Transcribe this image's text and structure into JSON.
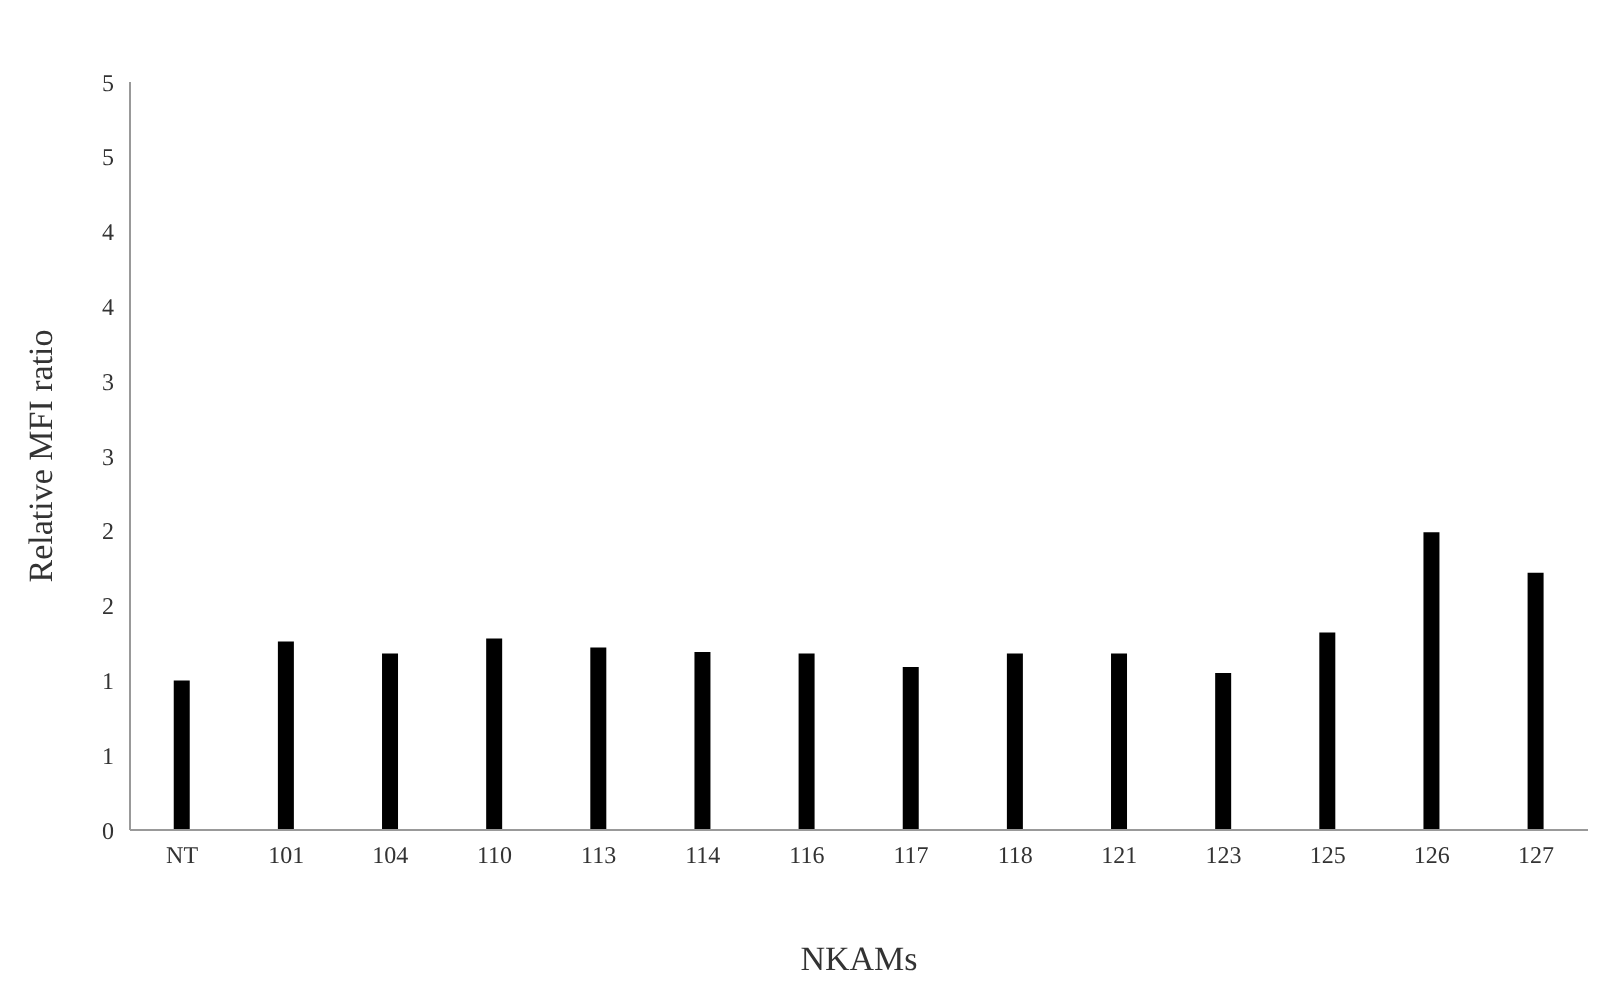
{
  "chart_data": {
    "type": "bar",
    "xlabel": "NKAMs",
    "ylabel": "Relative MFI ratio",
    "categories": [
      "NT",
      "101",
      "104",
      "110",
      "113",
      "114",
      "116",
      "117",
      "118",
      "121",
      "123",
      "125",
      "126",
      "127"
    ],
    "values": [
      1.0,
      1.26,
      1.18,
      1.28,
      1.22,
      1.19,
      1.18,
      1.09,
      1.18,
      1.18,
      1.05,
      1.32,
      1.99,
      1.72
    ],
    "color": "#000000",
    "ylim": [
      0,
      5
    ],
    "yticks": [
      0,
      {
        "value": 0.5,
        "label": "1"
      },
      1,
      {
        "value": 1.5,
        "label": "2"
      },
      2,
      {
        "value": 2.5,
        "label": "3"
      },
      3,
      {
        "value": 3.5,
        "label": "4"
      },
      4,
      {
        "value": 4.5,
        "label": "5"
      },
      5
    ],
    "grid": false,
    "legend": false
  }
}
